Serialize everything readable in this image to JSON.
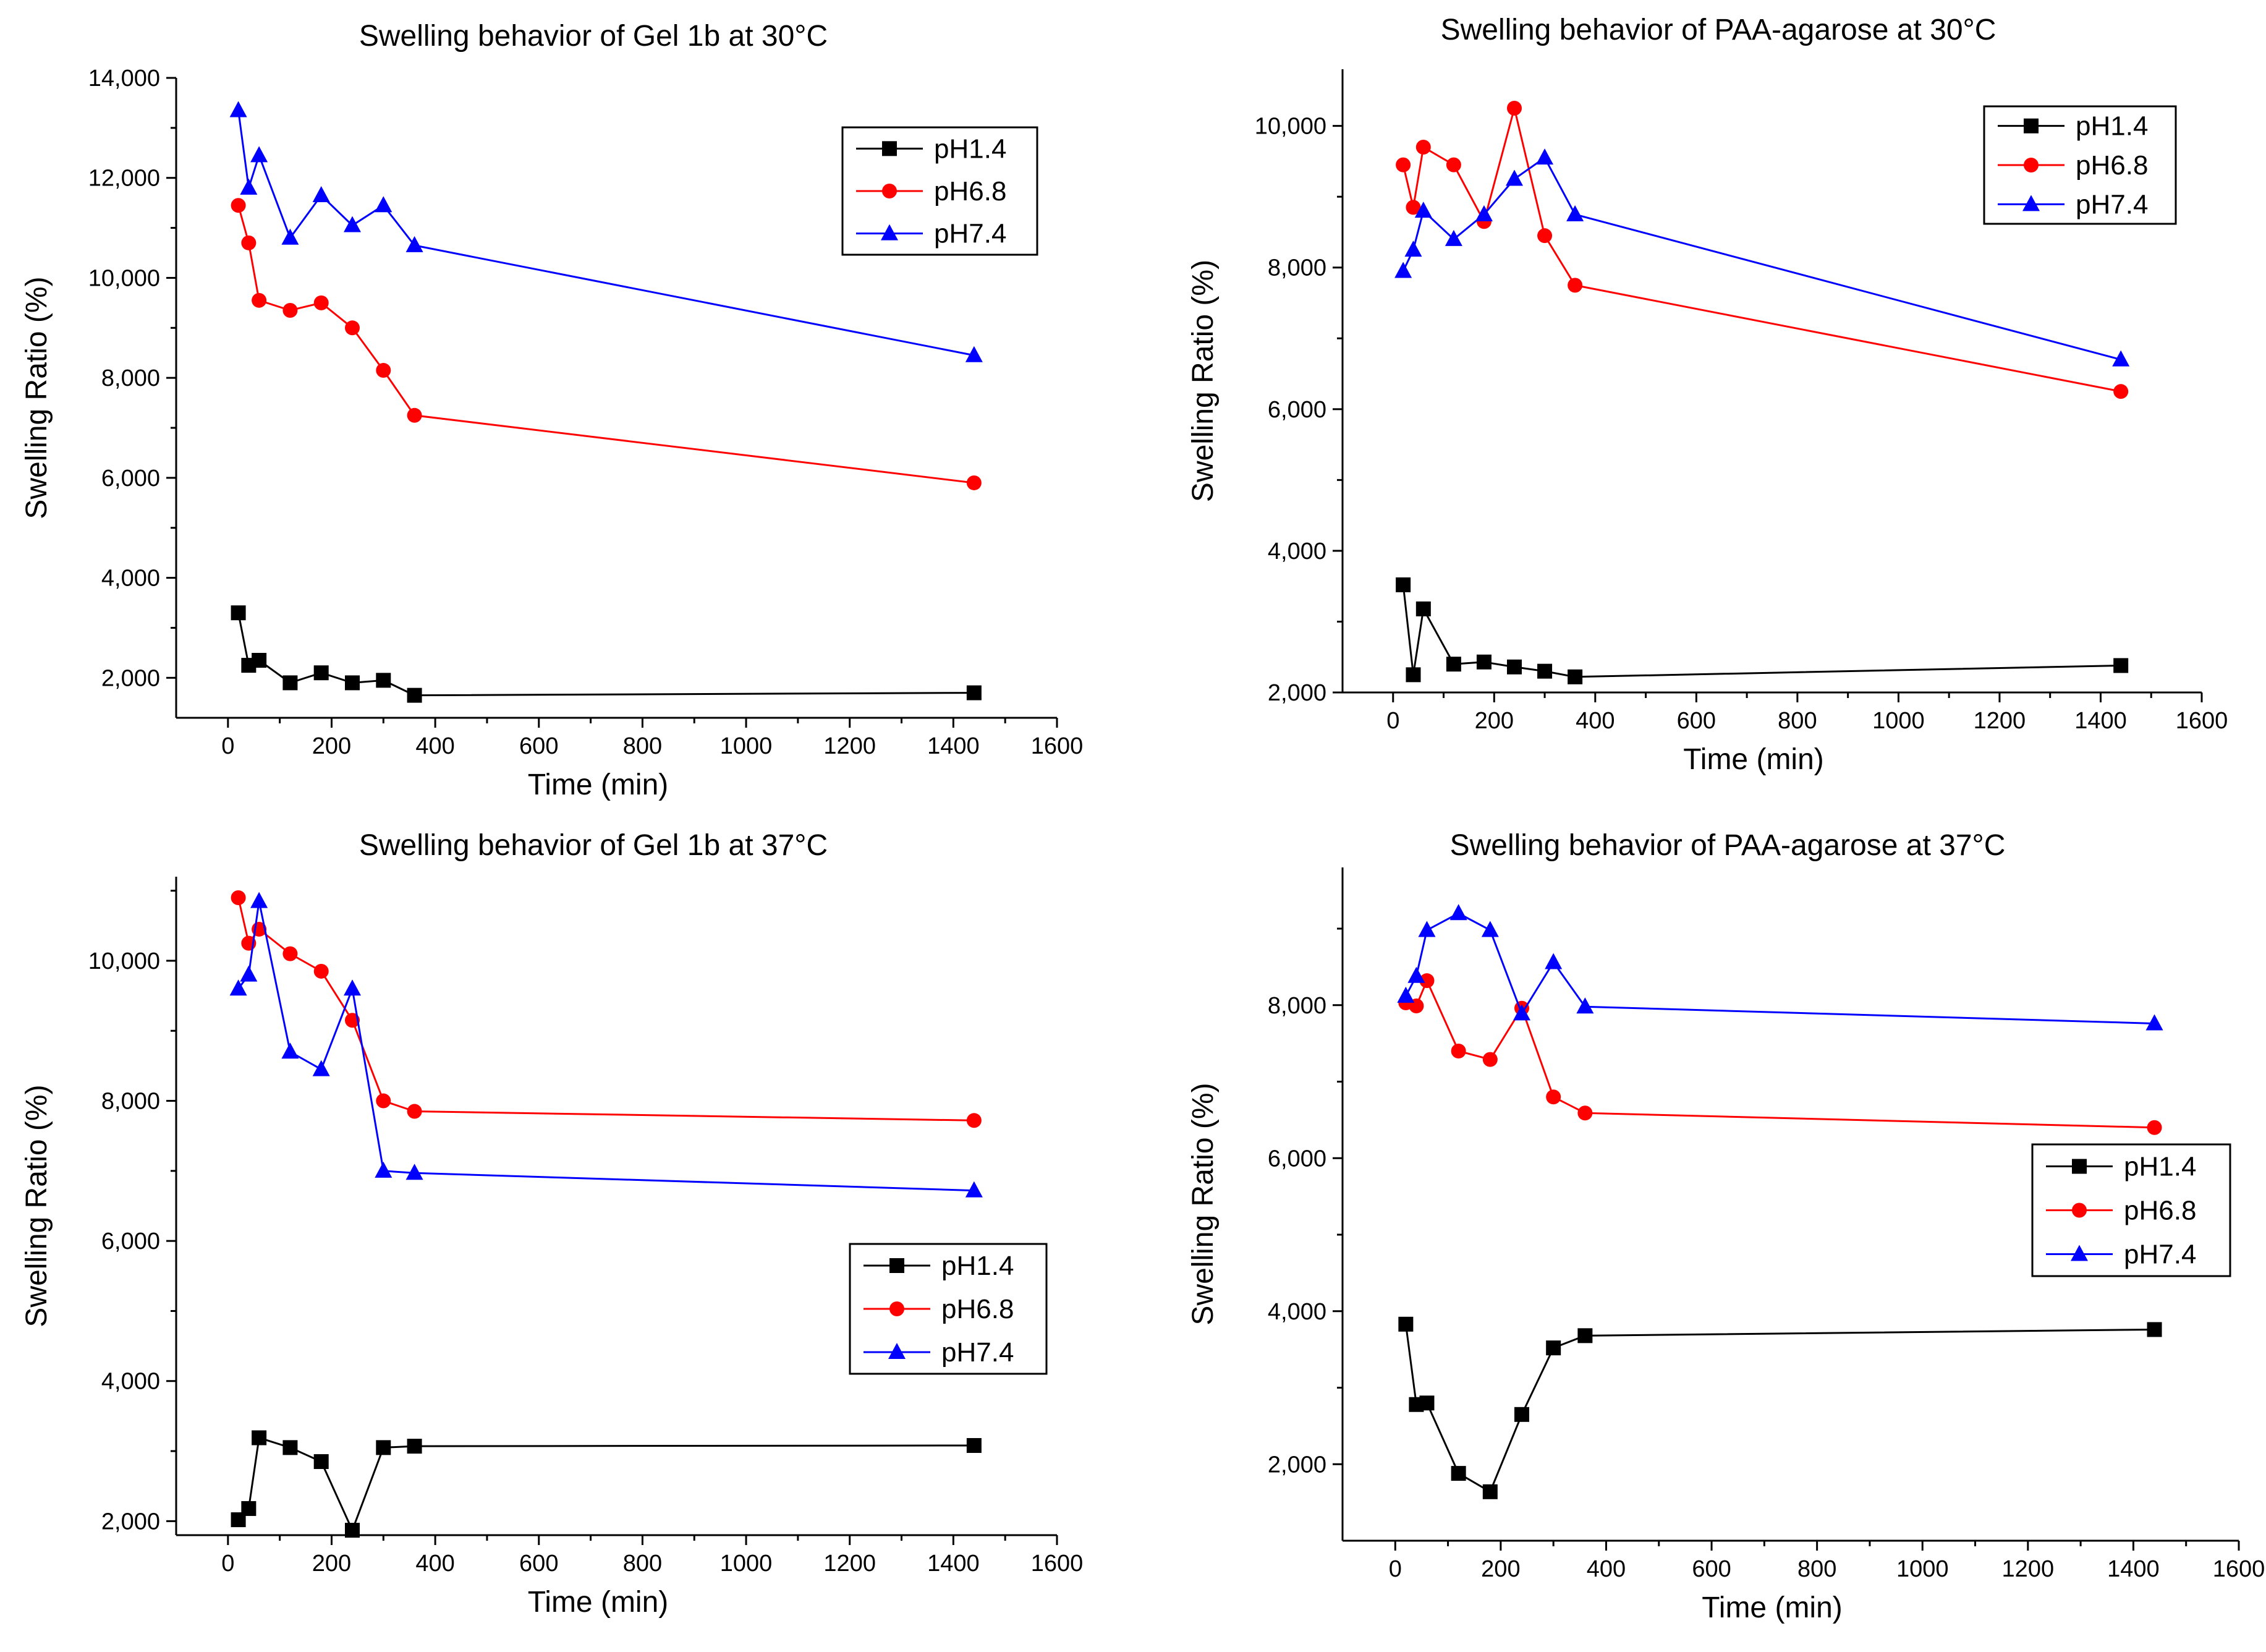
{
  "colors": {
    "pH1.4": "#000000",
    "pH6.8": "#ff0000",
    "pH7.4": "#0000ff"
  },
  "chart_data": [
    {
      "type": "line",
      "title": "Swelling behavior of Gel 1b at 30°C",
      "xlabel": "Time (min)",
      "ylabel": "Swelling Ratio (%)",
      "xlim": [
        -100,
        1600
      ],
      "ylim": [
        1200,
        14000
      ],
      "xticks": [
        0,
        200,
        400,
        600,
        800,
        1000,
        1200,
        1400,
        1600
      ],
      "yticks": [
        2000,
        4000,
        6000,
        8000,
        10000,
        12000,
        14000
      ],
      "ytick_labels": [
        "2,000",
        "4,000",
        "6,000",
        "8,000",
        "10,000",
        "12,000",
        "14,000"
      ],
      "legend_position": "top-right",
      "series": [
        {
          "name": "pH1.4",
          "marker": "square",
          "x": [
            20,
            40,
            60,
            120,
            180,
            240,
            300,
            360,
            1440
          ],
          "y": [
            3300,
            2250,
            2350,
            1900,
            2100,
            1900,
            1950,
            1650,
            1700
          ]
        },
        {
          "name": "pH6.8",
          "marker": "circle",
          "x": [
            20,
            40,
            60,
            120,
            180,
            240,
            300,
            360,
            1440
          ],
          "y": [
            11450,
            10700,
            9550,
            9350,
            9500,
            9000,
            8150,
            7250,
            5900
          ]
        },
        {
          "name": "pH7.4",
          "marker": "triangle",
          "x": [
            20,
            40,
            60,
            120,
            180,
            240,
            300,
            360,
            1440
          ],
          "y": [
            13350,
            11800,
            12450,
            10800,
            11650,
            11050,
            11450,
            10650,
            8450
          ]
        }
      ]
    },
    {
      "type": "line",
      "title": "Swelling behavior of PAA-agarose at 30°C",
      "xlabel": "Time (min)",
      "ylabel": "Swelling Ratio (%)",
      "xlim": [
        -100,
        1600
      ],
      "ylim": [
        2000,
        10800
      ],
      "xticks": [
        0,
        200,
        400,
        600,
        800,
        1000,
        1200,
        1400,
        1600
      ],
      "yticks": [
        2000,
        4000,
        6000,
        8000,
        10000
      ],
      "ytick_labels": [
        "2,000",
        "4,000",
        "6,000",
        "8,000",
        "10,000"
      ],
      "legend_position": "top-right",
      "series": [
        {
          "name": "pH1.4",
          "marker": "square",
          "x": [
            20,
            40,
            60,
            120,
            180,
            240,
            300,
            360,
            1440
          ],
          "y": [
            3520,
            2250,
            3180,
            2400,
            2430,
            2360,
            2300,
            2220,
            2380
          ]
        },
        {
          "name": "pH6.8",
          "marker": "circle",
          "x": [
            20,
            40,
            60,
            120,
            180,
            240,
            300,
            360,
            1440
          ],
          "y": [
            9450,
            8850,
            9700,
            9450,
            8650,
            10250,
            8450,
            7750,
            6250
          ]
        },
        {
          "name": "pH7.4",
          "marker": "triangle",
          "x": [
            20,
            40,
            60,
            120,
            180,
            240,
            300,
            360,
            1440
          ],
          "y": [
            7950,
            8250,
            8800,
            8400,
            8750,
            9250,
            9550,
            8750,
            6700
          ]
        }
      ]
    },
    {
      "type": "line",
      "title": "Swelling behavior of Gel 1b at 37°C",
      "xlabel": "Time (min)",
      "ylabel": "Swelling Ratio (%)",
      "xlim": [
        -100,
        1600
      ],
      "ylim": [
        1800,
        11200
      ],
      "xticks": [
        0,
        200,
        400,
        600,
        800,
        1000,
        1200,
        1400,
        1600
      ],
      "yticks": [
        2000,
        4000,
        6000,
        8000,
        10000
      ],
      "ytick_labels": [
        "2,000",
        "4,000",
        "6,000",
        "8,000",
        "10,000"
      ],
      "legend_position": "bottom-right",
      "series": [
        {
          "name": "pH1.4",
          "marker": "square",
          "x": [
            20,
            40,
            60,
            120,
            180,
            240,
            300,
            360,
            1440
          ],
          "y": [
            2020,
            2180,
            3190,
            3050,
            2850,
            1870,
            3050,
            3070,
            3080
          ]
        },
        {
          "name": "pH6.8",
          "marker": "circle",
          "x": [
            20,
            40,
            60,
            120,
            180,
            240,
            300,
            360,
            1440
          ],
          "y": [
            10900,
            10250,
            10450,
            10100,
            9850,
            9150,
            8000,
            7850,
            7720
          ]
        },
        {
          "name": "pH7.4",
          "marker": "triangle",
          "x": [
            20,
            40,
            60,
            120,
            180,
            240,
            300,
            360,
            1440
          ],
          "y": [
            9600,
            9800,
            10850,
            8700,
            8450,
            9600,
            7000,
            6970,
            6720
          ]
        }
      ]
    },
    {
      "type": "line",
      "title": "Swelling behavior of PAA-agarose at 37°C",
      "xlabel": "Time (min)",
      "ylabel": "Swelling Ratio (%)",
      "xlim": [
        -100,
        1600
      ],
      "ylim": [
        1000,
        9800
      ],
      "xticks": [
        0,
        200,
        400,
        600,
        800,
        1000,
        1200,
        1400,
        1600
      ],
      "yticks": [
        2000,
        4000,
        6000,
        8000
      ],
      "ytick_labels": [
        "2,000",
        "4,000",
        "6,000",
        "8,000"
      ],
      "legend_position": "right",
      "series": [
        {
          "name": "pH1.4",
          "marker": "square",
          "x": [
            20,
            40,
            60,
            120,
            180,
            240,
            300,
            360,
            1440
          ],
          "y": [
            3830,
            2780,
            2800,
            1880,
            1640,
            2650,
            3520,
            3680,
            3760
          ]
        },
        {
          "name": "pH6.8",
          "marker": "circle",
          "x": [
            20,
            40,
            60,
            120,
            180,
            240,
            300,
            360,
            1440
          ],
          "y": [
            8030,
            7990,
            8320,
            7400,
            7290,
            7960,
            6800,
            6590,
            6400
          ]
        },
        {
          "name": "pH7.4",
          "marker": "triangle",
          "x": [
            20,
            40,
            60,
            120,
            180,
            240,
            300,
            360,
            1440
          ],
          "y": [
            8120,
            8380,
            8980,
            9200,
            8980,
            7890,
            8560,
            7980,
            7760
          ]
        }
      ]
    }
  ]
}
